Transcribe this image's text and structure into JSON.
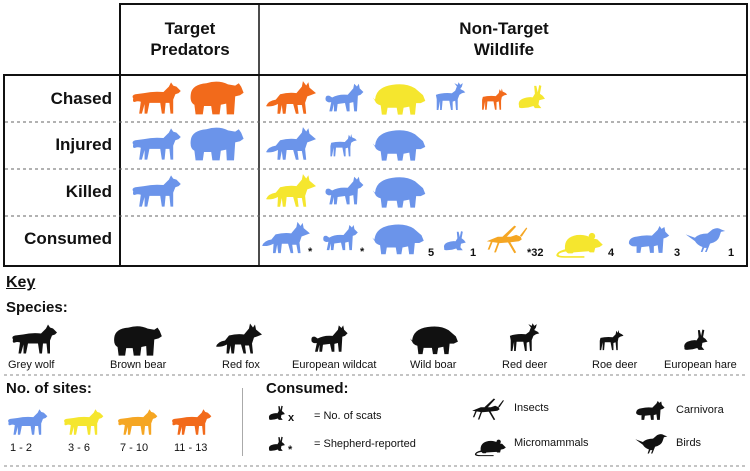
{
  "colors": {
    "blue": "#6b94ea",
    "yellow": "#f5e62e",
    "orange": "#f5a623",
    "red": "#f26a1b",
    "black": "#111111"
  },
  "header": {
    "target": "Target\nPredators",
    "nontarget": "Non-Target\nWildlife"
  },
  "rows": [
    {
      "label": "Chased"
    },
    {
      "label": "Injured"
    },
    {
      "label": "Killed"
    },
    {
      "label": "Consumed"
    }
  ],
  "consumed_notes": {
    "fox": "*",
    "cat": "*",
    "boar": "5",
    "hare": "1",
    "insect": "*32",
    "mouse": "4",
    "carnivore": "3",
    "bird": "1"
  },
  "key": {
    "title": "Key",
    "species_title": "Species:",
    "species": [
      "Grey wolf",
      "Brown bear",
      "Red fox",
      "European wildcat",
      "Wild boar",
      "Red deer",
      "Roe deer",
      "European hare"
    ],
    "sites_title": "No. of sites:",
    "sites": [
      "1 - 2",
      "3 - 6",
      "7 - 10",
      "11 - 13"
    ],
    "consumed_title": "Consumed:",
    "scats_x": "x",
    "scats_label": "= No. of scats",
    "shepherd_mark": "*",
    "shepherd_label": "= Shepherd-reported",
    "insects": "Insects",
    "micromammals": "Micromammals",
    "carnivora": "Carnivora",
    "birds": "Birds"
  }
}
